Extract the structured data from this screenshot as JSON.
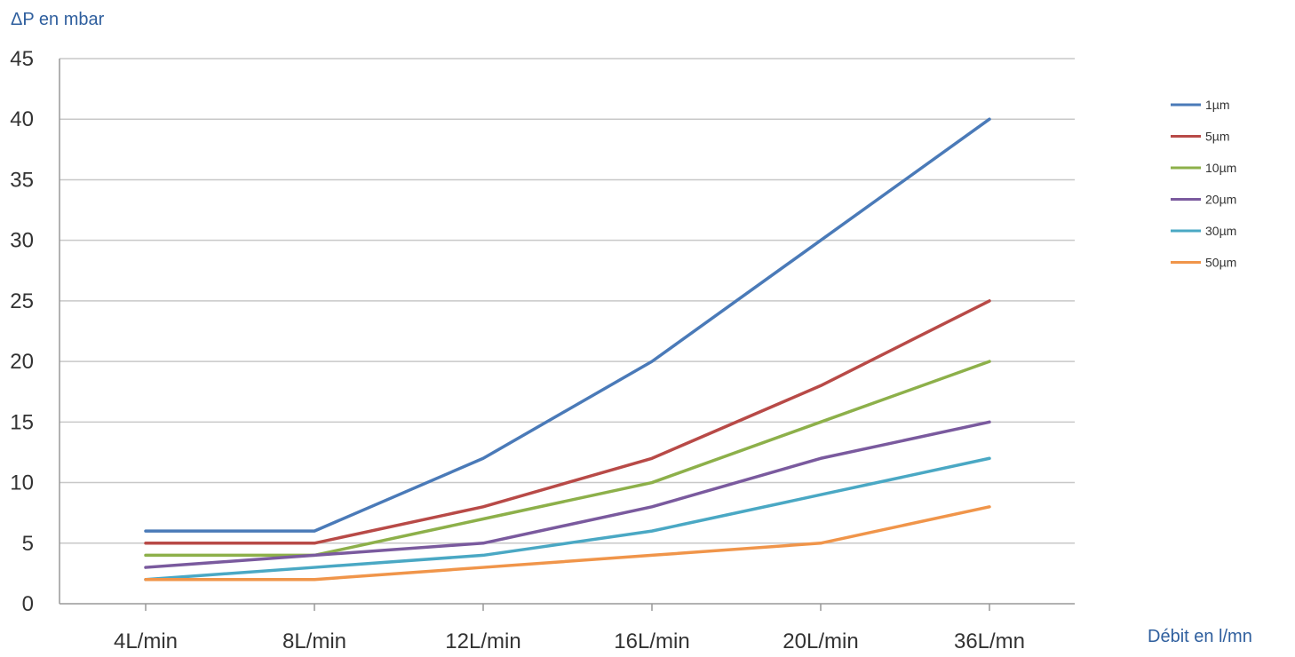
{
  "chart_data": {
    "type": "line",
    "ylabel": "ΔP en mbar",
    "xlabel": "Débit en l/mn",
    "categories": [
      "4L/min",
      "8L/min",
      "12L/min",
      "16L/min",
      "20L/min",
      "36L/mn"
    ],
    "ylim": [
      0,
      45
    ],
    "yticks": [
      0,
      5,
      10,
      15,
      20,
      25,
      30,
      35,
      40,
      45
    ],
    "grid": true,
    "legend_position": "right",
    "series": [
      {
        "name": "1µm",
        "color": "#4a7ab8",
        "values": [
          6,
          6,
          12,
          20,
          30,
          40
        ]
      },
      {
        "name": "5µm",
        "color": "#b84a47",
        "values": [
          5,
          5,
          8,
          12,
          18,
          25
        ]
      },
      {
        "name": "10µm",
        "color": "#8db04a",
        "values": [
          4,
          4,
          7,
          10,
          15,
          20
        ]
      },
      {
        "name": "20µm",
        "color": "#7a5a9e",
        "values": [
          3,
          4,
          5,
          8,
          12,
          15
        ]
      },
      {
        "name": "30µm",
        "color": "#4aa8c4",
        "values": [
          2,
          3,
          4,
          6,
          9,
          12
        ]
      },
      {
        "name": "50µm",
        "color": "#f0954a",
        "values": [
          2,
          2,
          3,
          4,
          5,
          8
        ]
      }
    ]
  }
}
